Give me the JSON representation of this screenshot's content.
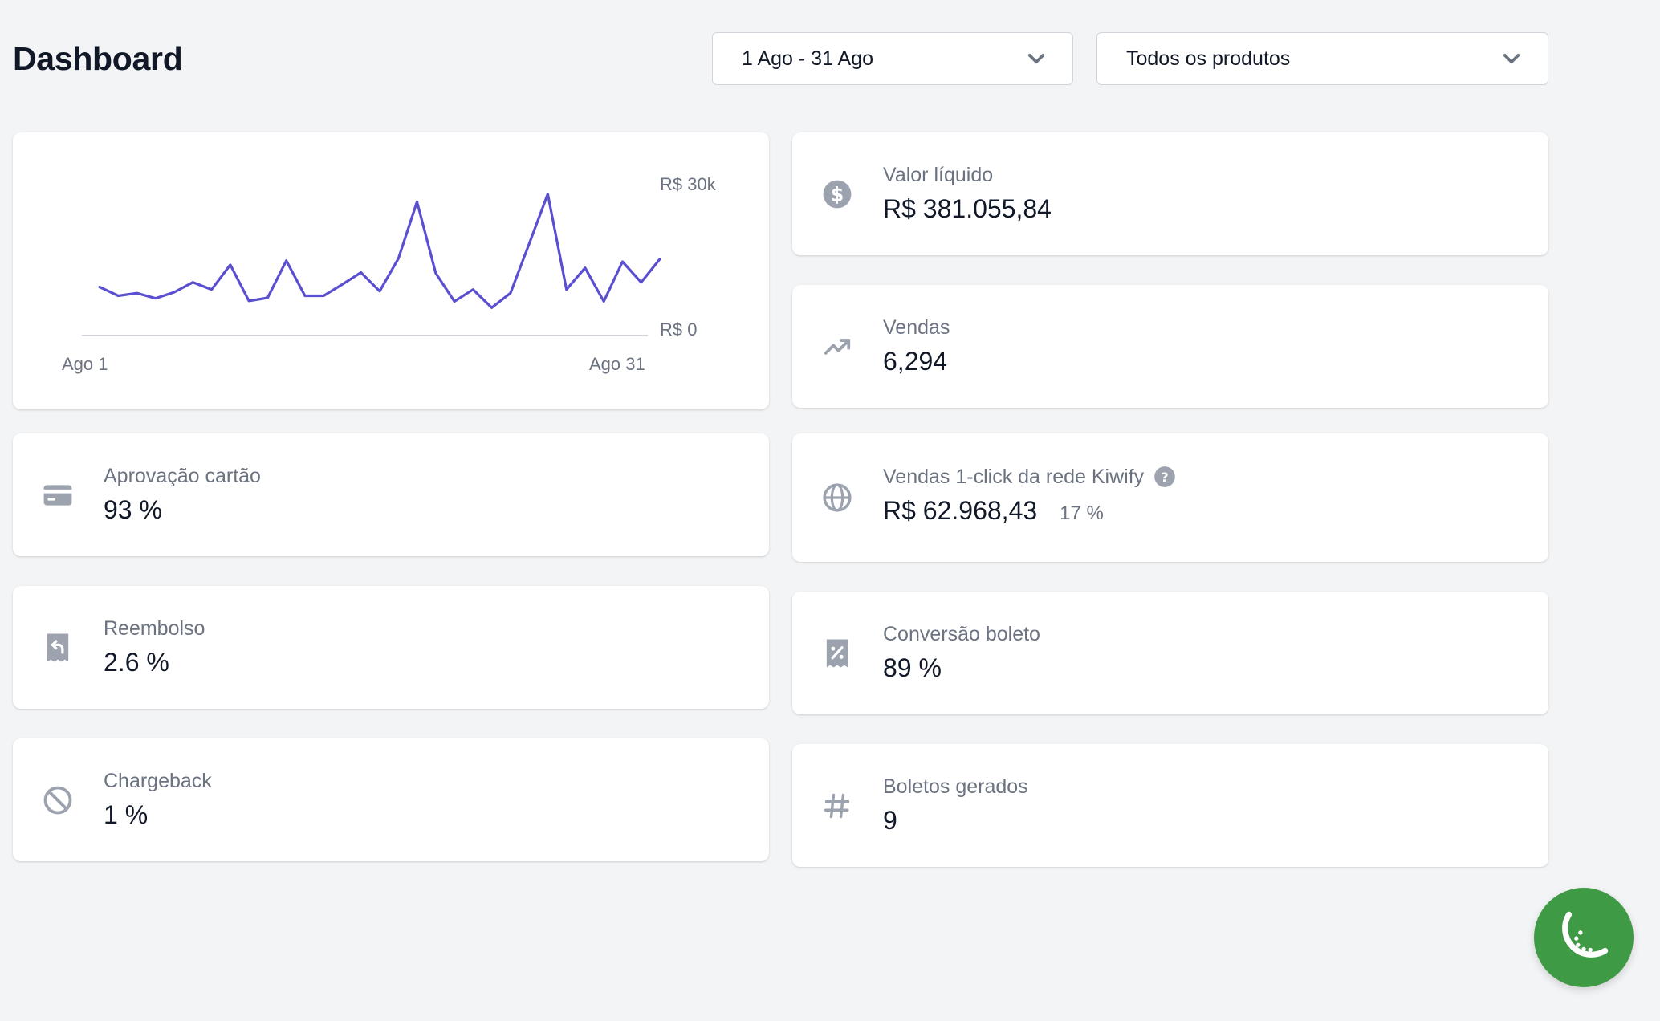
{
  "header": {
    "title": "Dashboard",
    "date_range": "1 Ago - 31 Ago",
    "product_filter": "Todos os produtos"
  },
  "chart_data": {
    "type": "line",
    "x_start_label": "Ago 1",
    "x_end_label": "Ago 31",
    "y_max_label": "R$ 30k",
    "y_min_label": "R$ 0",
    "ylim": [
      0,
      30000
    ],
    "x": [
      1,
      2,
      3,
      4,
      5,
      6,
      7,
      8,
      9,
      10,
      11,
      12,
      13,
      14,
      15,
      16,
      17,
      18,
      19,
      20,
      21,
      22,
      23,
      24,
      25,
      26,
      27,
      28,
      29,
      30,
      31
    ],
    "values": [
      9400,
      7700,
      8200,
      7200,
      8400,
      10300,
      8900,
      13700,
      6700,
      7300,
      14500,
      7700,
      7700,
      9900,
      12200,
      8600,
      14900,
      25900,
      12100,
      6600,
      8900,
      5400,
      8200,
      17700,
      27400,
      8900,
      13100,
      6600,
      14300,
      10300,
      14800
    ],
    "line_color": "#5b4fd1",
    "grid": false
  },
  "stats": {
    "valor_liquido": {
      "label": "Valor líquido",
      "value": "R$ 381.055,84",
      "icon": "dollar-circle-icon"
    },
    "vendas": {
      "label": "Vendas",
      "value": "6,294",
      "icon": "trending-up-icon"
    },
    "aprovacao": {
      "label": "Aprovação cartão",
      "value": "93 %",
      "icon": "credit-card-icon"
    },
    "kiwify": {
      "label": "Vendas 1-click da rede Kiwify",
      "value": "R$ 62.968,43",
      "sub": "17 %",
      "icon": "globe-icon"
    },
    "reembolso": {
      "label": "Reembolso",
      "value": "2.6 %",
      "icon": "receipt-refund-icon"
    },
    "conversao": {
      "label": "Conversão boleto",
      "value": "89 %",
      "icon": "receipt-tax-icon"
    },
    "chargeback": {
      "label": "Chargeback",
      "value": "1 %",
      "icon": "ban-icon"
    },
    "boletos": {
      "label": "Boletos gerados",
      "value": "9",
      "icon": "hashtag-icon"
    }
  },
  "colors": {
    "background": "#f3f4f6",
    "card": "#ffffff",
    "icon": "#9ca3af",
    "fab": "#3e9a44"
  }
}
